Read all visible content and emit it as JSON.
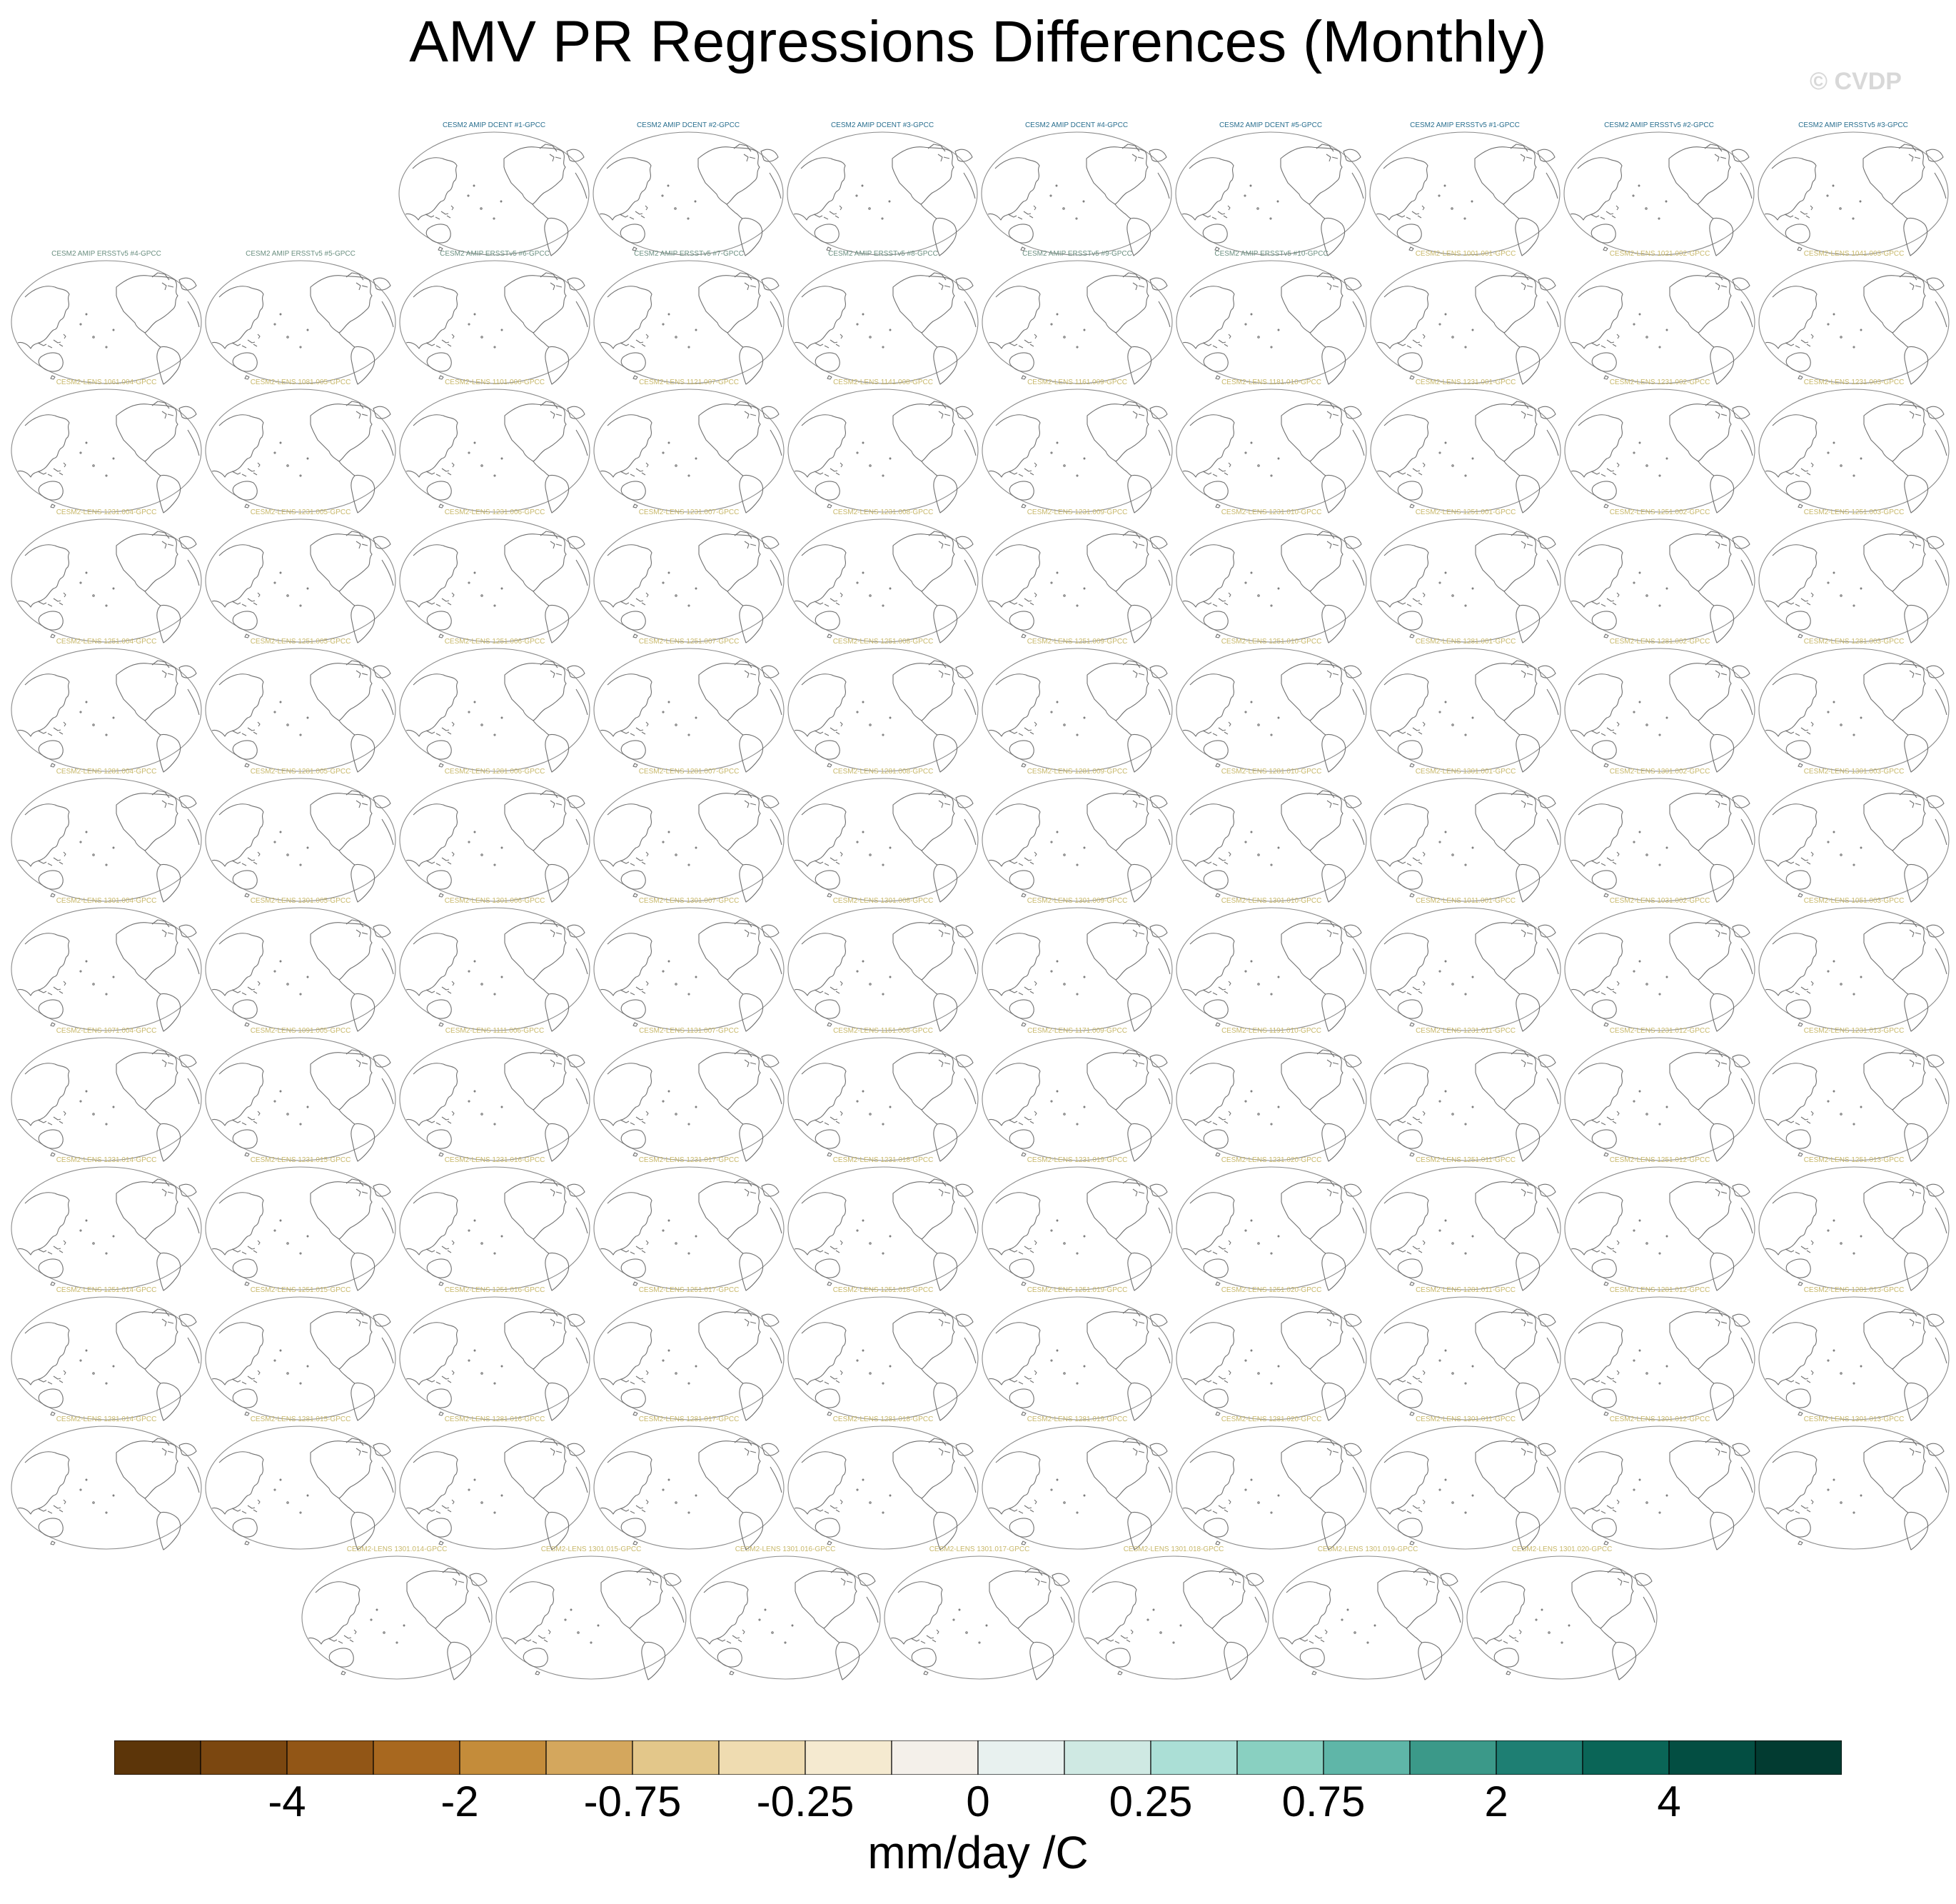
{
  "title": "AMV PR Regressions Differences (Monthly)",
  "watermark": "© CVDP",
  "units_label": "mm/day /C",
  "colors": {
    "label_obs": "#2a6f8f",
    "label_amip": "#6b8f80",
    "label_lens": "#c8b86a",
    "coastline": "#707070",
    "frame": "#8c8c8c"
  },
  "panel_icon": "world-map-icon",
  "panel_rows": [
    [
      "CESM2 AMIP DCENT #1-GPCC",
      "CESM2 AMIP DCENT #2-GPCC",
      "CESM2 AMIP DCENT #3-GPCC",
      "CESM2 AMIP DCENT #4-GPCC",
      "CESM2 AMIP DCENT #5-GPCC",
      "CESM2 AMIP ERSSTv5 #1-GPCC",
      "CESM2 AMIP ERSSTv5 #2-GPCC",
      "CESM2 AMIP ERSSTv5 #3-GPCC"
    ],
    [
      "CESM2 AMIP ERSSTv5 #4-GPCC",
      "CESM2 AMIP ERSSTv5 #5-GPCC",
      "CESM2 AMIP ERSSTv5 #6-GPCC",
      "CESM2 AMIP ERSSTv5 #7-GPCC",
      "CESM2 AMIP ERSSTv5 #8-GPCC",
      "CESM2 AMIP ERSSTv5 #9-GPCC",
      "CESM2 AMIP ERSSTv5 #10-GPCC",
      "CESM2-LENS 1001.001-GPCC",
      "CESM2-LENS 1021.002-GPCC",
      "CESM2-LENS 1041.003-GPCC"
    ],
    [
      "CESM2-LENS 1061.004-GPCC",
      "CESM2-LENS 1081.005-GPCC",
      "CESM2-LENS 1101.006-GPCC",
      "CESM2-LENS 1121.007-GPCC",
      "CESM2-LENS 1141.008-GPCC",
      "CESM2-LENS 1161.009-GPCC",
      "CESM2-LENS 1181.010-GPCC",
      "CESM2-LENS 1231.001-GPCC",
      "CESM2-LENS 1231.002-GPCC",
      "CESM2-LENS 1231.003-GPCC"
    ],
    [
      "CESM2-LENS 1231.004-GPCC",
      "CESM2-LENS 1231.005-GPCC",
      "CESM2-LENS 1231.006-GPCC",
      "CESM2-LENS 1231.007-GPCC",
      "CESM2-LENS 1231.008-GPCC",
      "CESM2-LENS 1231.009-GPCC",
      "CESM2-LENS 1231.010-GPCC",
      "CESM2-LENS 1251.001-GPCC",
      "CESM2-LENS 1251.002-GPCC",
      "CESM2-LENS 1251.003-GPCC"
    ],
    [
      "CESM2-LENS 1251.004-GPCC",
      "CESM2-LENS 1251.005-GPCC",
      "CESM2-LENS 1251.006-GPCC",
      "CESM2-LENS 1251.007-GPCC",
      "CESM2-LENS 1251.008-GPCC",
      "CESM2-LENS 1251.009-GPCC",
      "CESM2-LENS 1251.010-GPCC",
      "CESM2-LENS 1281.001-GPCC",
      "CESM2-LENS 1281.002-GPCC",
      "CESM2-LENS 1281.003-GPCC"
    ],
    [
      "CESM2-LENS 1281.004-GPCC",
      "CESM2-LENS 1281.005-GPCC",
      "CESM2-LENS 1281.006-GPCC",
      "CESM2-LENS 1281.007-GPCC",
      "CESM2-LENS 1281.008-GPCC",
      "CESM2-LENS 1281.009-GPCC",
      "CESM2-LENS 1281.010-GPCC",
      "CESM2-LENS 1301.001-GPCC",
      "CESM2-LENS 1301.002-GPCC",
      "CESM2-LENS 1301.003-GPCC"
    ],
    [
      "CESM2-LENS 1301.004-GPCC",
      "CESM2-LENS 1301.005-GPCC",
      "CESM2-LENS 1301.006-GPCC",
      "CESM2-LENS 1301.007-GPCC",
      "CESM2-LENS 1301.008-GPCC",
      "CESM2-LENS 1301.009-GPCC",
      "CESM2-LENS 1301.010-GPCC",
      "CESM2-LENS 1011.001-GPCC",
      "CESM2-LENS 1031.002-GPCC",
      "CESM2-LENS 1051.003-GPCC"
    ],
    [
      "CESM2-LENS 1071.004-GPCC",
      "CESM2-LENS 1091.005-GPCC",
      "CESM2-LENS 1111.006-GPCC",
      "CESM2-LENS 1131.007-GPCC",
      "CESM2-LENS 1151.008-GPCC",
      "CESM2-LENS 1171.009-GPCC",
      "CESM2-LENS 1191.010-GPCC",
      "CESM2-LENS 1231.011-GPCC",
      "CESM2-LENS 1231.012-GPCC",
      "CESM2-LENS 1231.013-GPCC"
    ],
    [
      "CESM2-LENS 1231.014-GPCC",
      "CESM2-LENS 1231.015-GPCC",
      "CESM2-LENS 1231.016-GPCC",
      "CESM2-LENS 1231.017-GPCC",
      "CESM2-LENS 1231.018-GPCC",
      "CESM2-LENS 1231.019-GPCC",
      "CESM2-LENS 1231.020-GPCC",
      "CESM2-LENS 1251.011-GPCC",
      "CESM2-LENS 1251.012-GPCC",
      "CESM2-LENS 1251.013-GPCC"
    ],
    [
      "CESM2-LENS 1251.014-GPCC",
      "CESM2-LENS 1251.015-GPCC",
      "CESM2-LENS 1251.016-GPCC",
      "CESM2-LENS 1251.017-GPCC",
      "CESM2-LENS 1251.018-GPCC",
      "CESM2-LENS 1251.019-GPCC",
      "CESM2-LENS 1251.020-GPCC",
      "CESM2-LENS 1281.011-GPCC",
      "CESM2-LENS 1281.012-GPCC",
      "CESM2-LENS 1281.013-GPCC"
    ],
    [
      "CESM2-LENS 1281.014-GPCC",
      "CESM2-LENS 1281.015-GPCC",
      "CESM2-LENS 1281.016-GPCC",
      "CESM2-LENS 1281.017-GPCC",
      "CESM2-LENS 1281.018-GPCC",
      "CESM2-LENS 1281.019-GPCC",
      "CESM2-LENS 1281.020-GPCC",
      "CESM2-LENS 1301.011-GPCC",
      "CESM2-LENS 1301.012-GPCC",
      "CESM2-LENS 1301.013-GPCC"
    ],
    [
      "CESM2-LENS 1301.014-GPCC",
      "CESM2-LENS 1301.015-GPCC",
      "CESM2-LENS 1301.016-GPCC",
      "CESM2-LENS 1301.017-GPCC",
      "CESM2-LENS 1301.018-GPCC",
      "CESM2-LENS 1301.019-GPCC",
      "CESM2-LENS 1301.020-GPCC"
    ]
  ],
  "colorbar": {
    "colors": [
      "#5c3509",
      "#7b4710",
      "#925616",
      "#a8681f",
      "#c48c3a",
      "#d4a75d",
      "#e3c78a",
      "#efdcb1",
      "#f5ead0",
      "#f4f0ea",
      "#e8f1ef",
      "#cfe9e3",
      "#abdfd6",
      "#89d0c1",
      "#5fb6a8",
      "#3b9989",
      "#1e7f73",
      "#0a6557",
      "#034e42",
      "#023b31"
    ],
    "tick_labels": [
      "-4",
      "-2",
      "-0.75",
      "-0.25",
      "0",
      "0.25",
      "0.75",
      "2",
      "4"
    ]
  }
}
